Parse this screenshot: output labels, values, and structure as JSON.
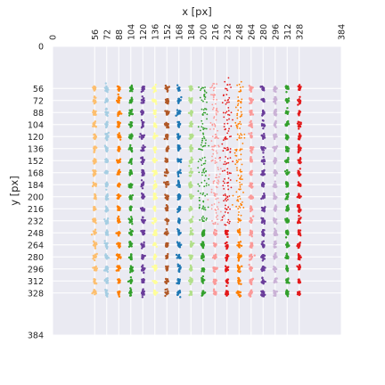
{
  "chart_data": {
    "type": "scatter",
    "title": "",
    "xlabel": "x [px]",
    "ylabel": "y [px]",
    "x_axis_position": "top",
    "y_axis_inverted": true,
    "xlim": [
      0,
      384
    ],
    "ylim": [
      0,
      384
    ],
    "x_ticks": [
      0,
      56,
      72,
      88,
      104,
      120,
      136,
      152,
      168,
      184,
      200,
      216,
      232,
      248,
      264,
      280,
      296,
      312,
      328,
      384
    ],
    "y_ticks": [
      0,
      56,
      72,
      88,
      104,
      120,
      136,
      152,
      168,
      184,
      200,
      216,
      232,
      248,
      264,
      280,
      296,
      312,
      328,
      384
    ],
    "x_tick_labels": [
      "0",
      "56",
      "72",
      "88",
      "104",
      "120",
      "136",
      "152",
      "168",
      "184",
      "200",
      "216",
      "232",
      "248",
      "264",
      "280",
      "296",
      "312",
      "328",
      "384"
    ],
    "y_tick_labels": [
      "0",
      "56",
      "72",
      "88",
      "104",
      "120",
      "136",
      "152",
      "168",
      "184",
      "200",
      "216",
      "232",
      "248",
      "264",
      "280",
      "296",
      "312",
      "328",
      "384"
    ],
    "grid": true,
    "background": "#eaeaf2",
    "grid_color": "#ffffff",
    "cluster_grid": {
      "x_centers": [
        56,
        72,
        88,
        104,
        120,
        136,
        152,
        168,
        184,
        200,
        216,
        232,
        248,
        264,
        280,
        296,
        312,
        328
      ],
      "y_centers": [
        56,
        72,
        88,
        104,
        120,
        136,
        152,
        168,
        184,
        200,
        216,
        232,
        248,
        264,
        280,
        296,
        312,
        328
      ],
      "color_cycle_by_column": true
    },
    "palette": [
      "#a6cee3",
      "#1f78b4",
      "#b2df8a",
      "#33a02c",
      "#fb9a99",
      "#e31a1c",
      "#fdbf6f",
      "#ff7f00",
      "#cab2d6",
      "#6a3d9a",
      "#ffff99",
      "#b15928"
    ],
    "column_color_order": [
      6,
      0,
      7,
      3,
      9,
      10,
      11,
      1,
      2,
      3,
      4,
      5,
      7,
      4,
      9,
      8,
      3,
      5
    ],
    "diffuse_region": {
      "x": [
        200,
        248
      ],
      "y": [
        56,
        232
      ]
    }
  }
}
